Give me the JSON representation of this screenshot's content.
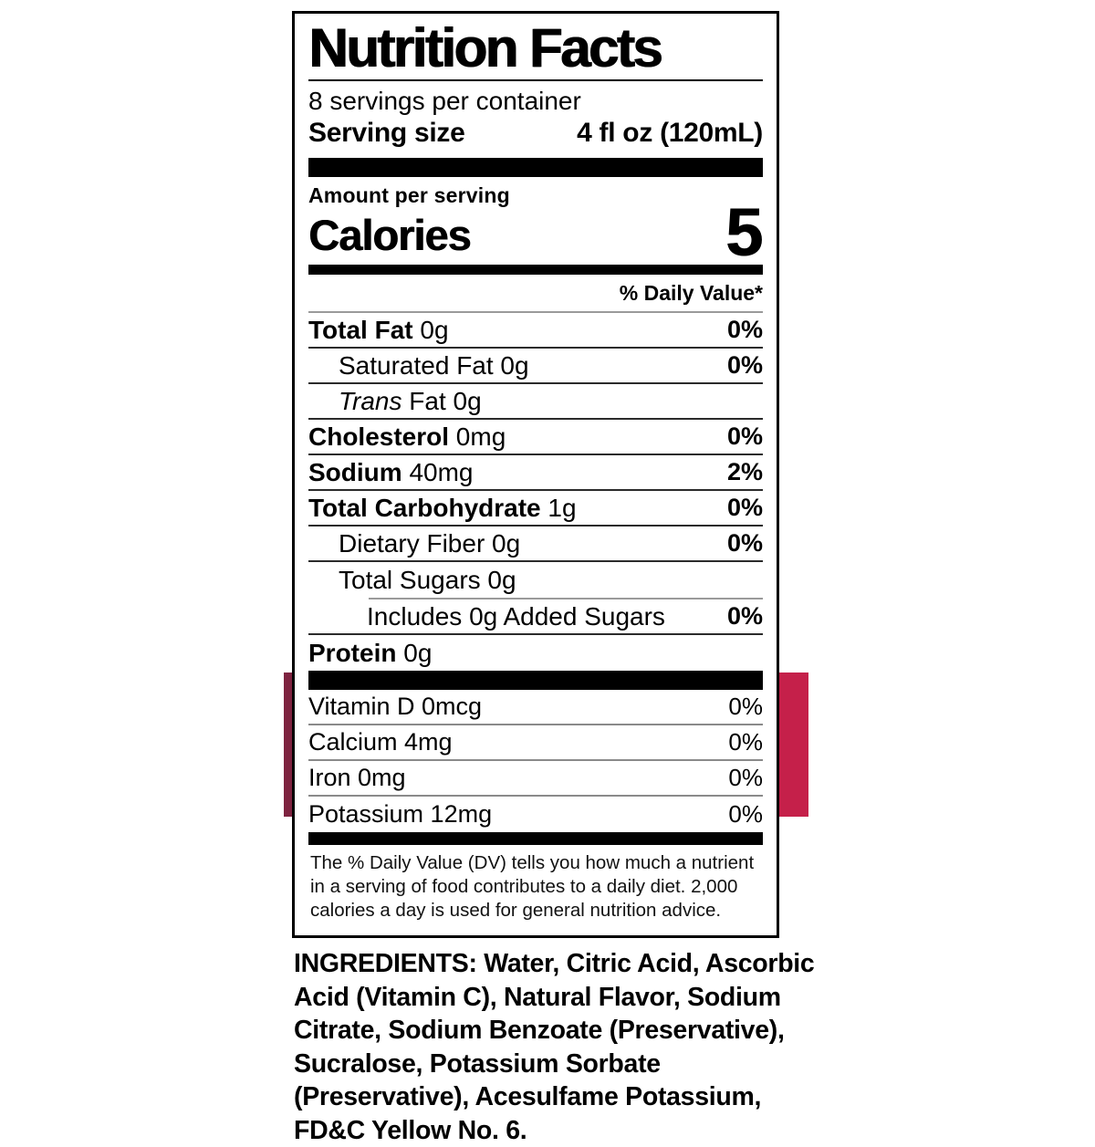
{
  "colors": {
    "red_bar": "#C5204A",
    "maroon_bar": "#7E2340",
    "text": "#000000"
  },
  "nutrition_label": {
    "title": "Nutrition Facts",
    "servings_per_container": "8 servings per container",
    "serving_size": {
      "label": "Serving size",
      "value": "4 fl oz (120mL)"
    },
    "amount_per_serving": "Amount per serving",
    "calories": {
      "label": "Calories",
      "value": "5"
    },
    "daily_value_header": "% Daily Value*",
    "nutrients": [
      {
        "name": "Total Fat",
        "amount": "0g",
        "dv": "0%",
        "bold": true,
        "indent": 0,
        "rule": "full"
      },
      {
        "name": "Saturated Fat",
        "amount": "0g",
        "dv": "0%",
        "bold": false,
        "indent": 1,
        "rule": "full"
      },
      {
        "name_italic": "Trans",
        "name": "Fat",
        "amount": "0g",
        "dv": "",
        "bold": false,
        "indent": 1,
        "rule": "full"
      },
      {
        "name": "Cholesterol",
        "amount": "0mg",
        "dv": "0%",
        "bold": true,
        "indent": 0,
        "rule": "full"
      },
      {
        "name": "Sodium",
        "amount": "40mg",
        "dv": "2%",
        "bold": true,
        "indent": 0,
        "rule": "full"
      },
      {
        "name": "Total Carbohydrate",
        "amount": "1g",
        "dv": "0%",
        "bold": true,
        "indent": 0,
        "rule": "full"
      },
      {
        "name": "Dietary Fiber",
        "amount": "0g",
        "dv": "0%",
        "bold": false,
        "indent": 1,
        "rule": "full"
      },
      {
        "name": "Total Sugars",
        "amount": "0g",
        "dv": "",
        "bold": false,
        "indent": 1,
        "rule": "partial"
      },
      {
        "name": "Includes 0g Added Sugars",
        "amount": "",
        "dv": "0%",
        "bold": false,
        "indent": 2,
        "rule": "full"
      },
      {
        "name": "Protein",
        "amount": "0g",
        "dv": "",
        "bold": true,
        "indent": 0,
        "rule": "none"
      }
    ],
    "micronutrients": [
      {
        "name": "Vitamin D",
        "amount": "0mcg",
        "dv": "0%"
      },
      {
        "name": "Calcium",
        "amount": "4mg",
        "dv": "0%"
      },
      {
        "name": "Iron",
        "amount": "0mg",
        "dv": "0%"
      },
      {
        "name": "Potassium",
        "amount": "12mg",
        "dv": "0%"
      }
    ],
    "footnote": "The % Daily Value (DV) tells you how much a nutrient in a serving of food contributes to a daily diet. 2,000 calories a day is used for general nutrition advice."
  },
  "ingredients": "INGREDIENTS: Water, Citric Acid, Ascorbic Acid (Vitamin C), Natural Flavor, Sodium Citrate, Sodium Benzoate (Preservative), Sucralose, Potassium Sorbate (Preservative), Acesulfame Potassium, FD&C Yellow No. 6."
}
